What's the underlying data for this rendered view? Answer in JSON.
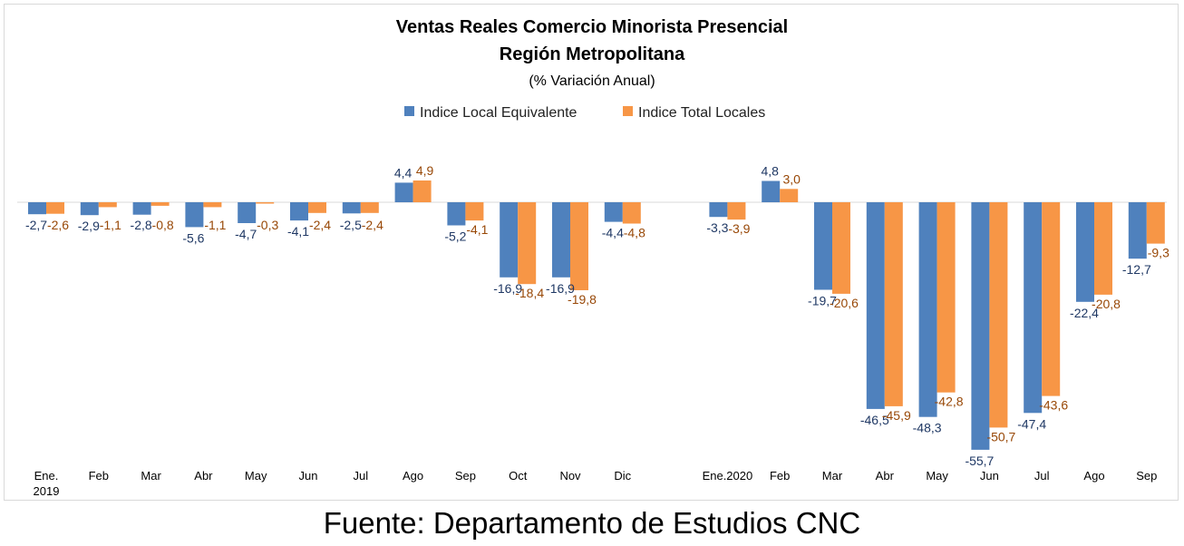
{
  "chart_data": {
    "type": "bar",
    "title": "Ventas Reales Comercio Minorista Presencial",
    "title_line2": "Región Metropolitana",
    "subtitle": "(% Variación Anual)",
    "legend_position": "top-center",
    "grid": false,
    "colors": {
      "series1": "#4f81bd",
      "series2": "#f79646",
      "label1": "#1f3864",
      "label2": "#984807"
    },
    "categories": [
      "Ene. 2019",
      "Feb",
      "Mar",
      "Abr",
      "May",
      "Jun",
      "Jul",
      "Ago",
      "Sep",
      "Oct",
      "Nov",
      "Dic",
      "",
      "Ene.2020",
      "Feb",
      "Mar",
      "Abr",
      "May",
      "Jun",
      "Jul",
      "Ago",
      "Sep"
    ],
    "category_label_lines": [
      [
        "Ene.",
        "2019"
      ],
      [
        "Feb"
      ],
      [
        "Mar"
      ],
      [
        "Abr"
      ],
      [
        "May"
      ],
      [
        "Jun"
      ],
      [
        "Jul"
      ],
      [
        "Ago"
      ],
      [
        "Sep"
      ],
      [
        "Oct"
      ],
      [
        "Nov"
      ],
      [
        "Dic"
      ],
      [
        ""
      ],
      [
        "Ene.2020"
      ],
      [
        "Feb"
      ],
      [
        "Mar"
      ],
      [
        "Abr"
      ],
      [
        "May"
      ],
      [
        "Jun"
      ],
      [
        "Jul"
      ],
      [
        "Ago"
      ],
      [
        "Sep"
      ]
    ],
    "series": [
      {
        "name": "Indice Local Equivalente",
        "values": [
          -2.7,
          -2.9,
          -2.8,
          -5.6,
          -4.7,
          -4.1,
          -2.5,
          4.4,
          -5.2,
          -16.9,
          -16.9,
          -4.4,
          null,
          -3.3,
          4.8,
          -19.7,
          -46.5,
          -48.3,
          -55.7,
          -47.4,
          -22.4,
          -12.7
        ],
        "labels": [
          "-2,7",
          "-2,9",
          "-2,8",
          "-5,6",
          "-4,7",
          "-4,1",
          "-2,5",
          "4,4",
          "-5,2",
          "-16,9",
          "-16,9",
          "-4,4",
          "",
          "-3,3",
          "4,8",
          "-19,7",
          "-46,5",
          "-48,3",
          "-55,7",
          "-47,4",
          "-22,4",
          "-12,7"
        ]
      },
      {
        "name": "Indice Total Locales",
        "values": [
          -2.6,
          -1.1,
          -0.8,
          -1.1,
          -0.3,
          -2.4,
          -2.4,
          4.9,
          -4.1,
          -18.4,
          -19.8,
          -4.8,
          null,
          -3.9,
          3.0,
          -20.6,
          -45.9,
          -42.8,
          -50.7,
          -43.6,
          -20.8,
          -9.3
        ],
        "labels": [
          "-2,6",
          "-1,1",
          "-0,8",
          "-1,1",
          "-0,3",
          "-2,4",
          "-2,4",
          "4,9",
          "-4,1",
          "-18,4",
          "-19,8",
          "-4,8",
          "",
          "-3,9",
          "3,0",
          "-20,6",
          "-45,9",
          "-42,8",
          "-50,7",
          "-43,6",
          "-20,8",
          "-9,3"
        ]
      }
    ],
    "ylim": [
      -60,
      8
    ]
  },
  "source_note": "Fuente: Departamento de Estudios CNC"
}
